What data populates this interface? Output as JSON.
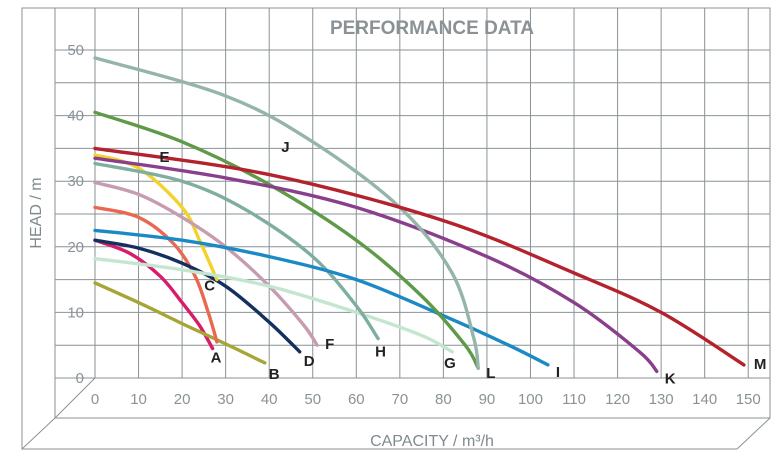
{
  "chart_data": {
    "type": "line",
    "title": "PERFORMANCE DATA",
    "xlabel": "CAPACITY / m³/h",
    "ylabel": "HEAD / m",
    "xlim": [
      0,
      155
    ],
    "ylim": [
      0,
      50
    ],
    "x_ticks": [
      "0",
      "10",
      "20",
      "30",
      "40",
      "50",
      "60",
      "70",
      "80",
      "90",
      "100",
      "110",
      "120",
      "130",
      "140",
      "150"
    ],
    "y_ticks": [
      "0",
      "10",
      "20",
      "30",
      "40",
      "50"
    ],
    "grid": true,
    "series": [
      {
        "name": "A",
        "color": "#d81b6a",
        "x": [
          0,
          8,
          15,
          20,
          24,
          27
        ],
        "y": [
          21,
          19,
          15.5,
          11.5,
          8,
          4.5
        ]
      },
      {
        "name": "B",
        "color": "#a6a637",
        "x": [
          0,
          10,
          20,
          30,
          39
        ],
        "y": [
          14.5,
          11.5,
          8.3,
          5.2,
          2.3
        ]
      },
      {
        "name": "C",
        "color": "#e8694f",
        "x": [
          0,
          10,
          18,
          23,
          26,
          28
        ],
        "y": [
          26,
          24.5,
          20.5,
          15.5,
          10,
          5.5
        ]
      },
      {
        "name": "D",
        "color": "#15305e",
        "x": [
          0,
          10,
          20,
          30,
          40,
          47
        ],
        "y": [
          21,
          19.8,
          17.5,
          14,
          8.5,
          4
        ]
      },
      {
        "name": "E",
        "color": "#f2d22b",
        "x": [
          0,
          10,
          20,
          24,
          27,
          28
        ],
        "y": [
          34,
          32,
          26,
          21,
          16.5,
          15
        ]
      },
      {
        "name": "F",
        "color": "#c79cb0",
        "x": [
          0,
          10,
          20,
          30,
          40,
          48,
          51
        ],
        "y": [
          29.8,
          28,
          24.5,
          20,
          14,
          8,
          5
        ]
      },
      {
        "name": "G",
        "color": "#c4e6cf",
        "x": [
          0,
          20,
          40,
          60,
          75,
          82
        ],
        "y": [
          18.2,
          16.5,
          14,
          10,
          6.5,
          4
        ]
      },
      {
        "name": "H",
        "color": "#7faea0",
        "x": [
          0,
          20,
          35,
          50,
          60,
          65
        ],
        "y": [
          32.7,
          30,
          25.5,
          18.5,
          11,
          6
        ]
      },
      {
        "name": "I",
        "color": "#1b8ac4",
        "x": [
          0,
          20,
          40,
          60,
          80,
          95,
          104
        ],
        "y": [
          22.5,
          21,
          18.5,
          15,
          9.5,
          5,
          2
        ]
      },
      {
        "name": "J",
        "color": "#5e9a47",
        "x": [
          0,
          20,
          40,
          60,
          75,
          85,
          88
        ],
        "y": [
          40.5,
          36,
          29.5,
          21,
          12.5,
          5,
          1.5
        ]
      },
      {
        "name": "K",
        "color": "#8a3f8c",
        "x": [
          0,
          30,
          60,
          90,
          110,
          125,
          129
        ],
        "y": [
          33.5,
          30.5,
          26,
          18.5,
          11.5,
          4,
          1
        ]
      },
      {
        "name": "L",
        "color": "#95b5ab",
        "x": [
          0,
          30,
          50,
          70,
          82,
          87,
          88
        ],
        "y": [
          48.8,
          43,
          36,
          26,
          16,
          6,
          1.5
        ]
      },
      {
        "name": "M",
        "color": "#b3222d",
        "x": [
          0,
          40,
          80,
          110,
          130,
          149
        ],
        "y": [
          35,
          31,
          24,
          16,
          10,
          2
        ]
      }
    ]
  }
}
